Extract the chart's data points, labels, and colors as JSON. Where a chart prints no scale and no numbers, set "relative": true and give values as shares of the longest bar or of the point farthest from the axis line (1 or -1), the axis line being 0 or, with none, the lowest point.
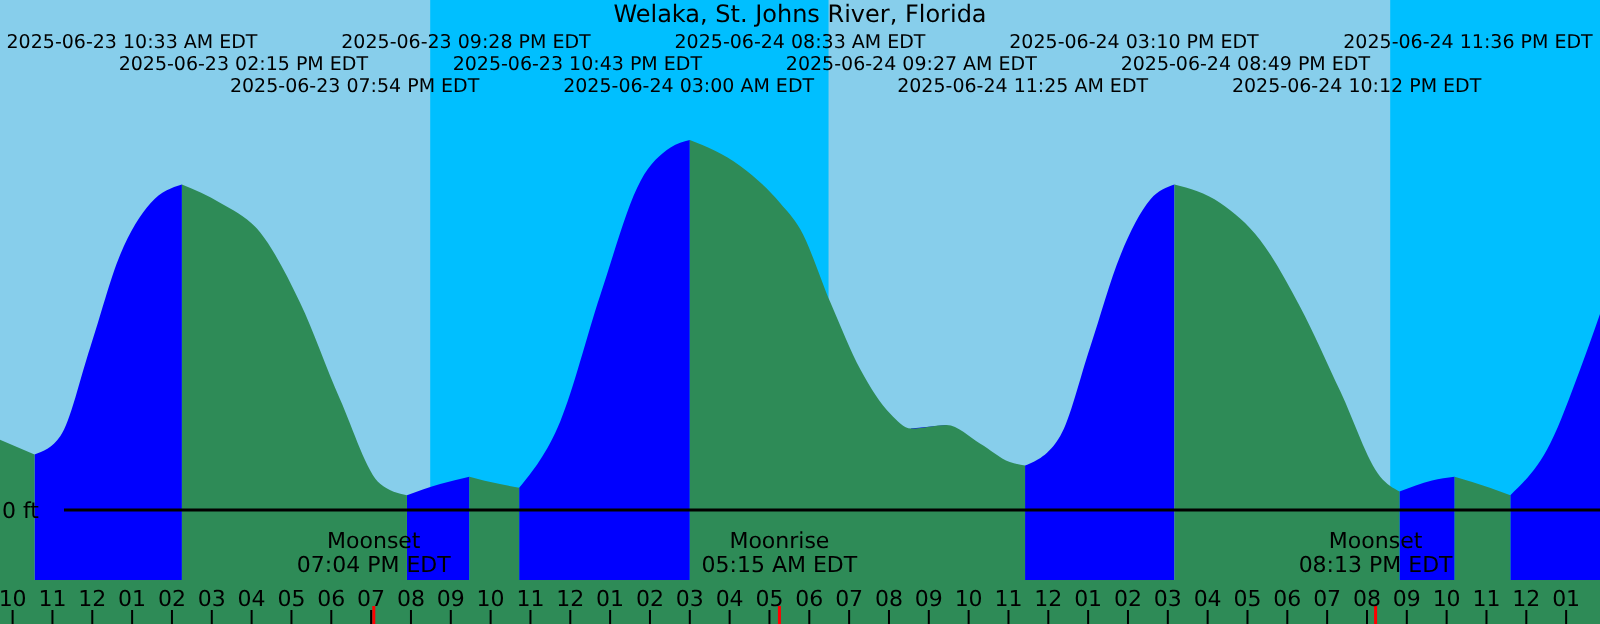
{
  "chart_data": {
    "type": "area",
    "title": "Welaka, St. Johns River, Florida",
    "relative": true,
    "x": [
      "2025-06-23T09:41",
      "2025-06-23T10:33",
      "2025-06-23T11:12",
      "2025-06-23T11:57",
      "2025-06-23T12:42",
      "2025-06-23T13:28",
      "2025-06-23T14:15",
      "2025-06-23T15:13",
      "2025-06-23T16:13",
      "2025-06-23T17:13",
      "2025-06-23T18:13",
      "2025-06-23T19:14",
      "2025-06-23T19:54",
      "2025-06-23T20:44",
      "2025-06-23T21:28",
      "2025-06-23T22:14",
      "2025-06-23T22:43",
      "2025-06-23T23:45",
      "2025-06-24T00:45",
      "2025-06-24T01:46",
      "2025-06-24T02:31",
      "2025-06-24T03:00",
      "2025-06-24T04:16",
      "2025-06-24T05:16",
      "2025-06-24T05:46",
      "2025-06-24T06:32",
      "2025-06-24T07:17",
      "2025-06-24T08:02",
      "2025-06-24T08:33",
      "2025-06-24T09:27",
      "2025-06-24T10:17",
      "2025-06-24T11:02",
      "2025-06-24T11:25",
      "2025-06-24T12:18",
      "2025-06-24T13:03",
      "2025-06-24T13:49",
      "2025-06-24T14:34",
      "2025-06-24T15:10",
      "2025-06-24T16:19",
      "2025-06-24T17:19",
      "2025-06-24T18:19",
      "2025-06-24T19:20",
      "2025-06-24T20:20",
      "2025-06-24T20:49",
      "2025-06-24T21:38",
      "2025-06-24T22:12",
      "2025-06-24T23:05",
      "2025-06-24T23:36",
      "2025-06-25T00:36",
      "2025-06-25T01:21",
      "2025-06-25T01:51"
    ],
    "series": [
      {
        "color": "#0000ff",
        "values": [
          null,
          0.15,
          0.2,
          0.44,
          0.69,
          0.83,
          0.88,
          null,
          null,
          null,
          null,
          null,
          0.04,
          0.07,
          0.09,
          null,
          0.06,
          0.24,
          0.58,
          0.89,
          0.98,
          1,
          null,
          null,
          null,
          null,
          null,
          null,
          0.22,
          0.23,
          null,
          null,
          0.12,
          0.2,
          0.44,
          0.69,
          0.84,
          0.88,
          null,
          null,
          null,
          null,
          null,
          0.05,
          0.08,
          0.09,
          null,
          0.04,
          0.18,
          0.38,
          0.53
        ]
      },
      {
        "color": "#2e8b57",
        "values": [
          0.19,
          0.15,
          null,
          null,
          null,
          null,
          0.88,
          0.83,
          0.75,
          0.56,
          0.3,
          0.07,
          0.04,
          null,
          0.09,
          0.07,
          0.06,
          null,
          null,
          null,
          null,
          1,
          0.93,
          0.83,
          0.76,
          0.56,
          0.38,
          0.26,
          0.22,
          0.23,
          0.18,
          0.13,
          0.12,
          null,
          null,
          null,
          null,
          0.88,
          0.83,
          0.73,
          0.55,
          0.32,
          0.09,
          0.05,
          null,
          0.09,
          0.06,
          0.04,
          null,
          null,
          null
        ]
      }
    ],
    "xlim": [
      "2025-06-23T09:41",
      "2025-06-25T01:51"
    ],
    "xticks": [
      {
        "value": "2025-06-23T10:00",
        "label": "10"
      },
      {
        "value": "2025-06-23T11:00",
        "label": "11"
      },
      {
        "value": "2025-06-23T12:00",
        "label": "12"
      },
      {
        "value": "2025-06-23T13:00",
        "label": "01"
      },
      {
        "value": "2025-06-23T14:00",
        "label": "02"
      },
      {
        "value": "2025-06-23T15:00",
        "label": "03"
      },
      {
        "value": "2025-06-23T16:00",
        "label": "04"
      },
      {
        "value": "2025-06-23T17:00",
        "label": "05"
      },
      {
        "value": "2025-06-23T18:00",
        "label": "06"
      },
      {
        "value": "2025-06-23T19:00",
        "label": "07"
      },
      {
        "value": "2025-06-23T20:00",
        "label": "08"
      },
      {
        "value": "2025-06-23T21:00",
        "label": "09"
      },
      {
        "value": "2025-06-23T22:00",
        "label": "10"
      },
      {
        "value": "2025-06-23T23:00",
        "label": "11"
      },
      {
        "value": "2025-06-24T00:00",
        "label": "12"
      },
      {
        "value": "2025-06-24T01:00",
        "label": "01"
      },
      {
        "value": "2025-06-24T02:00",
        "label": "02"
      },
      {
        "value": "2025-06-24T03:00",
        "label": "03"
      },
      {
        "value": "2025-06-24T04:00",
        "label": "04"
      },
      {
        "value": "2025-06-24T05:00",
        "label": "05"
      },
      {
        "value": "2025-06-24T06:00",
        "label": "06"
      },
      {
        "value": "2025-06-24T07:00",
        "label": "07"
      },
      {
        "value": "2025-06-24T08:00",
        "label": "08"
      },
      {
        "value": "2025-06-24T09:00",
        "label": "09"
      },
      {
        "value": "2025-06-24T10:00",
        "label": "10"
      },
      {
        "value": "2025-06-24T11:00",
        "label": "11"
      },
      {
        "value": "2025-06-24T12:00",
        "label": "12"
      },
      {
        "value": "2025-06-24T13:00",
        "label": "01"
      },
      {
        "value": "2025-06-24T14:00",
        "label": "02"
      },
      {
        "value": "2025-06-24T15:00",
        "label": "03"
      },
      {
        "value": "2025-06-24T16:00",
        "label": "04"
      },
      {
        "value": "2025-06-24T17:00",
        "label": "05"
      },
      {
        "value": "2025-06-24T18:00",
        "label": "06"
      },
      {
        "value": "2025-06-24T19:00",
        "label": "07"
      },
      {
        "value": "2025-06-24T20:00",
        "label": "08"
      },
      {
        "value": "2025-06-24T21:00",
        "label": "09"
      },
      {
        "value": "2025-06-24T22:00",
        "label": "10"
      },
      {
        "value": "2025-06-24T23:00",
        "label": "11"
      },
      {
        "value": "2025-06-25T00:00",
        "label": "12"
      },
      {
        "value": "2025-06-25T01:00",
        "label": "01"
      }
    ],
    "bands": [
      {
        "axis": "x",
        "from": "2025-06-23T20:29",
        "to": "2025-06-24T06:29",
        "color": "#00bfff"
      },
      {
        "axis": "x",
        "from": "2025-06-24T20:35",
        "to": "2025-06-25T01:51",
        "color": "#00bfff"
      }
    ],
    "ref_lines": [
      {
        "axis": "y",
        "value": 0,
        "label": "0 ft",
        "color": "#000000"
      },
      {
        "axis": "x",
        "value": "2025-06-23T19:04",
        "label": "Moonset\n07:04 PM EDT",
        "color": "#ff0000"
      },
      {
        "axis": "x",
        "value": "2025-06-24T05:15",
        "label": "Moonrise\n05:15 AM EDT",
        "color": "#ff0000"
      },
      {
        "axis": "x",
        "value": "2025-06-24T20:13",
        "label": "Moonset\n08:13 PM EDT",
        "color": "#ff0000"
      }
    ],
    "annotations": [
      "2025-06-23 10:33 AM EDT",
      "2025-06-23 02:15 PM EDT",
      "2025-06-23 07:54 PM EDT",
      "2025-06-23 09:28 PM EDT",
      "2025-06-23 10:43 PM EDT",
      "2025-06-24 03:00 AM EDT",
      "2025-06-24 08:33 AM EDT",
      "2025-06-24 09:27 AM EDT",
      "2025-06-24 11:25 AM EDT",
      "2025-06-24 03:10 PM EDT",
      "2025-06-24 08:49 PM EDT",
      "2025-06-24 10:12 PM EDT",
      "2025-06-24 11:36 PM EDT"
    ]
  }
}
